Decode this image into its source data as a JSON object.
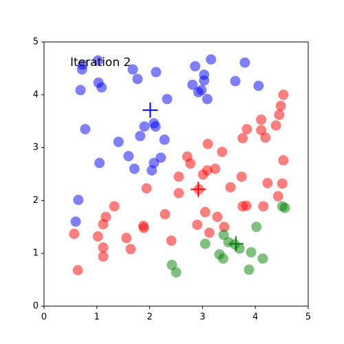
{
  "chart_data": {
    "type": "scatter",
    "annotation": "Iteration 2",
    "xlim": [
      0,
      5
    ],
    "ylim": [
      0,
      5
    ],
    "xticks": [
      0,
      1,
      2,
      3,
      4,
      5
    ],
    "yticks": [
      0,
      1,
      2,
      3,
      4,
      5
    ],
    "marker_alpha": 0.5,
    "series": [
      {
        "color": "#0000ff",
        "x": [
          1.02,
          0.73,
          0.72,
          1.03,
          1.09,
          0.69,
          1.68,
          1.77,
          2.12,
          3.16,
          2.86,
          3.03,
          3.03,
          2.81,
          2.98,
          2.92,
          3.09,
          3.8,
          3.62,
          4.06,
          2.33,
          2.08,
          2.11,
          1.9,
          0.78,
          1.41,
          1.82,
          2.28,
          1.6,
          2.21,
          2.08,
          2.04,
          1.71,
          1.05,
          0.65,
          0.6
        ],
        "values": [
          4.65,
          4.57,
          4.48,
          4.23,
          4.14,
          4.09,
          4.48,
          4.3,
          4.43,
          4.67,
          4.54,
          4.38,
          4.27,
          4.19,
          4.09,
          4.05,
          3.92,
          4.61,
          4.26,
          4.17,
          3.92,
          3.46,
          3.4,
          3.4,
          3.35,
          3.11,
          3.22,
          3.15,
          2.84,
          2.81,
          2.71,
          2.57,
          2.6,
          2.71,
          2.01,
          1.6
        ]
      },
      {
        "color": "#ff0000",
        "x": [
          4.53,
          4.48,
          4.45,
          4.11,
          4.39,
          4.11,
          3.84,
          3.76,
          4.19,
          3.1,
          3.37,
          2.71,
          2.77,
          3.09,
          3.24,
          3.01,
          2.55,
          3.74,
          3.53,
          4.23,
          4.53,
          4.51,
          1.94,
          2.93,
          4.43,
          2.55,
          1.33,
          3.83,
          3.76,
          4.15,
          3.05,
          1.88,
          1.17,
          1.12,
          3.28,
          2.29,
          2.9,
          0.57,
          1.02,
          1.56,
          3.41,
          3.13,
          1.12,
          1.64,
          2.41,
          1.12,
          0.64,
          1.89
        ],
        "values": [
          4.0,
          3.79,
          3.62,
          3.53,
          3.42,
          3.33,
          3.35,
          3.18,
          3.19,
          3.07,
          2.92,
          2.83,
          2.7,
          2.57,
          2.6,
          2.49,
          2.45,
          2.45,
          2.25,
          2.33,
          2.76,
          2.32,
          2.23,
          2.21,
          2.08,
          2.14,
          1.89,
          1.9,
          1.89,
          1.89,
          1.78,
          1.52,
          1.69,
          1.55,
          1.69,
          1.74,
          1.54,
          1.37,
          1.32,
          1.29,
          1.5,
          1.39,
          1.11,
          1.08,
          1.24,
          0.94,
          0.68,
          1.48
        ]
      },
      {
        "color": "#008000",
        "x": [
          4.56,
          4.51,
          4.02,
          3.4,
          3.49,
          3.05,
          3.61,
          3.7,
          3.32,
          3.39,
          3.92,
          4.14,
          2.42,
          2.5,
          3.88
        ],
        "values": [
          1.86,
          1.89,
          1.5,
          1.35,
          1.21,
          1.18,
          1.17,
          1.09,
          0.98,
          0.9,
          1.02,
          0.9,
          0.78,
          0.64,
          0.69
        ]
      }
    ],
    "centroids": {
      "x": [
        2.01,
        2.92,
        3.63
      ],
      "values": [
        3.71,
        2.21,
        1.18
      ],
      "colors": [
        "#0000ff",
        "#ff0000",
        "#008000"
      ]
    }
  }
}
